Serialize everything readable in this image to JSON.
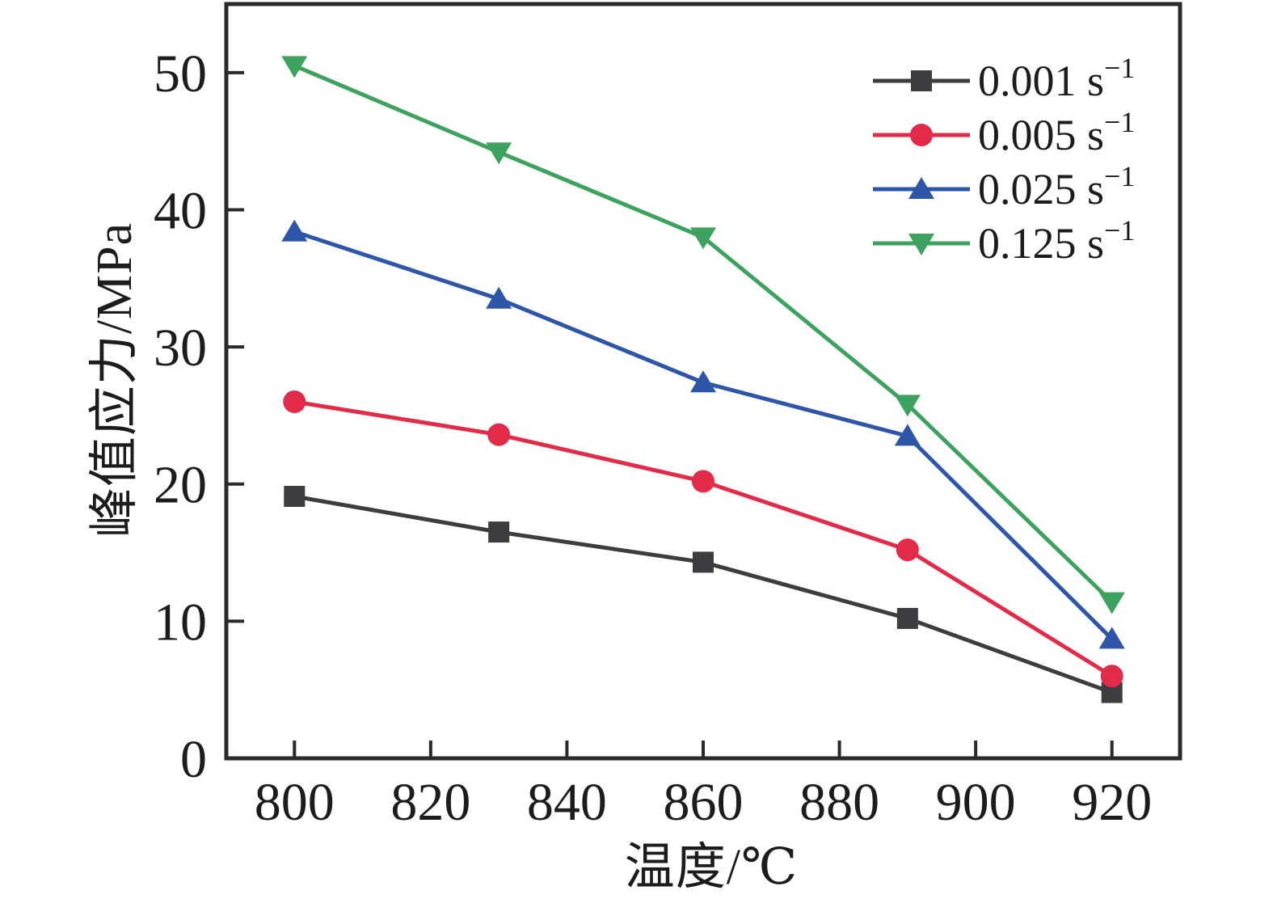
{
  "chart_data": {
    "type": "line",
    "title": "",
    "xlabel": "温度/℃",
    "ylabel": "峰值应力/MPa",
    "x": [
      800,
      830,
      860,
      890,
      920
    ],
    "xlim": [
      790,
      930
    ],
    "ylim": [
      0,
      55
    ],
    "x_ticks": [
      800,
      820,
      840,
      860,
      880,
      900,
      920
    ],
    "y_ticks": [
      0,
      10,
      20,
      30,
      40,
      50
    ],
    "grid": false,
    "legend_position": "top-right",
    "series": [
      {
        "name": "0.001 s⁻¹",
        "marker": "square",
        "color": "#3d3d3f",
        "values": [
          19.1,
          16.5,
          14.3,
          10.2,
          4.8
        ]
      },
      {
        "name": "0.005 s⁻¹",
        "marker": "circle",
        "color": "#e12b48",
        "values": [
          26.0,
          23.6,
          20.2,
          15.2,
          6.0
        ]
      },
      {
        "name": "0.025 s⁻¹",
        "marker": "triangle-up",
        "color": "#2e56a8",
        "values": [
          38.4,
          33.5,
          27.4,
          23.5,
          8.7
        ]
      },
      {
        "name": "0.125 s⁻¹",
        "marker": "triangle-down",
        "color": "#3ea25f",
        "values": [
          50.5,
          44.2,
          38.0,
          25.8,
          11.4
        ]
      }
    ],
    "axis_color": "#2a2a2a",
    "tick_label_color": "#1c1c1c"
  }
}
